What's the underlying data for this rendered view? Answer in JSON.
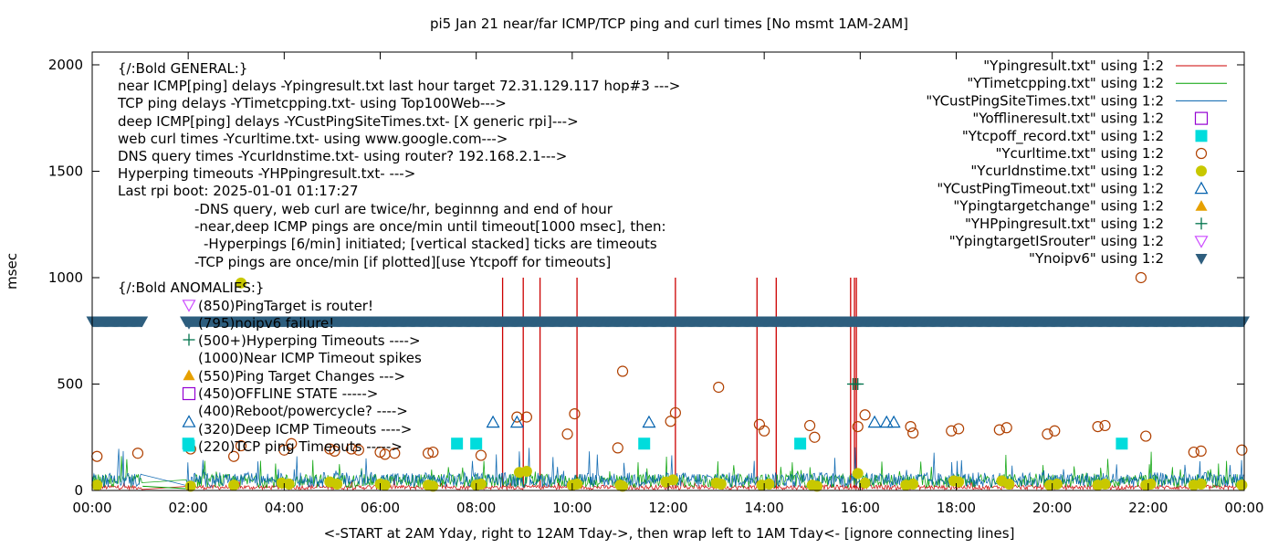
{
  "chart_data": {
    "type": "scatter",
    "title": "pi5 Jan 21  near/far ICMP/TCP ping and curl times [No msmt 1AM-2AM]",
    "xlabel": "<-START at 2AM Yday, right to 12AM Tday->, then wrap left to 1AM Tday<- [ignore connecting lines]",
    "ylabel": "msec",
    "xlim": [
      0,
      24
    ],
    "ylim": [
      0,
      2060
    ],
    "x_ticks": [
      0,
      2,
      4,
      6,
      8,
      10,
      12,
      14,
      16,
      18,
      20,
      22,
      24
    ],
    "x_tick_labels": [
      "00:00",
      "02:00",
      "04:00",
      "06:00",
      "08:00",
      "10:00",
      "12:00",
      "14:00",
      "16:00",
      "18:00",
      "20:00",
      "22:00",
      "00:00"
    ],
    "y_ticks": [
      0,
      500,
      1000,
      1500,
      2000
    ],
    "y_tick_labels": [
      "0",
      "500",
      "1000",
      "1500",
      "2000"
    ],
    "legend_position": "top-right",
    "annotation_lines": [
      "{/:Bold GENERAL:}",
      "near ICMP[ping] delays -Ypingresult.txt last hour target 72.31.129.117 hop#3 --->",
      "TCP ping delays -YTimetcpping.txt- using Top100Web--->",
      "deep ICMP[ping] delays -YCustPingSiteTimes.txt- [X generic rpi]--->",
      "web curl times -Ycurltime.txt- using www.google.com--->",
      "DNS query times -YcurIdnstime.txt- using router? 192.168.2.1--->",
      "Hyperping timeouts -YHPpingresult.txt- --->",
      "Last rpi boot: 2025-01-01 01:17:27",
      "-DNS query, web curl are twice/hr, beginnng and end of hour",
      "-near,deep ICMP pings are once/min until timeout[1000 msec], then:",
      "-Hyperpings [6/min] initiated; [vertical stacked] ticks are timeouts",
      "-TCP pings are once/min [if plotted][use Ytcpoff for timeouts]",
      "{/:Bold ANOMALIES:}",
      "(850)PingTarget is router!",
      "(795)noipv6 failure!",
      "(500+)Hyperping Timeouts ---->",
      "(1000)Near ICMP Timeout spikes",
      "(550)Ping Target Changes --->",
      "(450)OFFLINE STATE ----->",
      "(400)Reboot/powercycle? ---->",
      "(320)Deep ICMP Timeouts ---->",
      "(220)TCP ping Timeouts ----->"
    ],
    "series": [
      {
        "name": "\"Ypingresult.txt\" using 1:2",
        "style": "line",
        "color": "#cc0000",
        "baseline": 15,
        "spikes": [
          [
            8.55,
            1000
          ],
          [
            8.98,
            1000
          ],
          [
            9.33,
            1000
          ],
          [
            10.1,
            1000
          ],
          [
            12.15,
            1000
          ],
          [
            13.85,
            1000
          ],
          [
            14.25,
            1000
          ],
          [
            15.8,
            1000
          ],
          [
            15.88,
            1000
          ],
          [
            15.92,
            1000
          ]
        ]
      },
      {
        "name": "\"YTimetcpping.txt\" using 1:2",
        "style": "line",
        "color": "#00a000",
        "baseline": 45
      },
      {
        "name": "\"YCustPingSiteTimes.txt\" using 1:2",
        "style": "line",
        "color": "#0060ad",
        "baseline": 50
      },
      {
        "name": "\"Yofflineresult.txt\" using 1:2",
        "style": "open-square",
        "color": "#9400d3",
        "points": []
      },
      {
        "name": "\"Ytcpoff_record.txt\" using 1:2",
        "style": "filled-square",
        "color": "#00dcdc",
        "points": [
          [
            2.0,
            220
          ],
          [
            7.6,
            220
          ],
          [
            8.0,
            220
          ],
          [
            11.5,
            220
          ],
          [
            14.75,
            220
          ],
          [
            21.45,
            220
          ]
        ]
      },
      {
        "name": "\"Ycurltime.txt\" using 1:2",
        "style": "open-circle",
        "color": "#b04000",
        "points": [
          [
            0.1,
            160
          ],
          [
            0.95,
            175
          ],
          [
            2.05,
            195
          ],
          [
            2.95,
            160
          ],
          [
            3.1,
            210
          ],
          [
            4.0,
            190
          ],
          [
            4.15,
            220
          ],
          [
            4.95,
            195
          ],
          [
            5.05,
            185
          ],
          [
            5.4,
            195
          ],
          [
            5.55,
            190
          ],
          [
            6.0,
            180
          ],
          [
            6.1,
            170
          ],
          [
            6.3,
            175
          ],
          [
            7.0,
            175
          ],
          [
            7.1,
            180
          ],
          [
            8.1,
            165
          ],
          [
            8.85,
            345
          ],
          [
            9.05,
            345
          ],
          [
            9.9,
            265
          ],
          [
            10.05,
            360
          ],
          [
            10.95,
            200
          ],
          [
            11.05,
            560
          ],
          [
            12.05,
            325
          ],
          [
            12.15,
            365
          ],
          [
            13.05,
            485
          ],
          [
            13.9,
            310
          ],
          [
            14.0,
            280
          ],
          [
            14.95,
            305
          ],
          [
            15.05,
            250
          ],
          [
            15.95,
            300
          ],
          [
            16.1,
            355
          ],
          [
            17.05,
            300
          ],
          [
            17.1,
            270
          ],
          [
            17.9,
            280
          ],
          [
            18.05,
            290
          ],
          [
            18.9,
            285
          ],
          [
            19.05,
            295
          ],
          [
            19.9,
            265
          ],
          [
            20.05,
            280
          ],
          [
            20.95,
            300
          ],
          [
            21.1,
            305
          ],
          [
            21.85,
            1000
          ],
          [
            21.95,
            255
          ],
          [
            22.95,
            180
          ],
          [
            23.1,
            185
          ],
          [
            23.95,
            190
          ]
        ]
      },
      {
        "name": "\"YcurIdnstime.txt\" using 1:2",
        "style": "filled-circle",
        "color": "#c8c800",
        "points": [
          [
            0.1,
            25
          ],
          [
            2.05,
            20
          ],
          [
            2.95,
            25
          ],
          [
            3.1,
            975
          ],
          [
            3.95,
            35
          ],
          [
            4.1,
            30
          ],
          [
            4.95,
            40
          ],
          [
            5.1,
            30
          ],
          [
            6.0,
            30
          ],
          [
            6.1,
            25
          ],
          [
            7.0,
            25
          ],
          [
            7.1,
            20
          ],
          [
            8.0,
            25
          ],
          [
            8.1,
            30
          ],
          [
            8.9,
            85
          ],
          [
            9.05,
            90
          ],
          [
            10.0,
            25
          ],
          [
            10.1,
            30
          ],
          [
            11.0,
            25
          ],
          [
            11.05,
            20
          ],
          [
            11.95,
            40
          ],
          [
            12.1,
            50
          ],
          [
            13.0,
            35
          ],
          [
            13.1,
            30
          ],
          [
            13.95,
            25
          ],
          [
            14.1,
            30
          ],
          [
            15.0,
            25
          ],
          [
            15.1,
            20
          ],
          [
            15.95,
            80
          ],
          [
            16.1,
            35
          ],
          [
            16.95,
            25
          ],
          [
            17.1,
            30
          ],
          [
            17.95,
            45
          ],
          [
            18.05,
            40
          ],
          [
            18.95,
            45
          ],
          [
            19.1,
            30
          ],
          [
            19.95,
            25
          ],
          [
            20.1,
            30
          ],
          [
            20.95,
            25
          ],
          [
            21.1,
            30
          ],
          [
            21.95,
            25
          ],
          [
            22.05,
            30
          ],
          [
            22.95,
            25
          ],
          [
            23.1,
            30
          ],
          [
            23.95,
            25
          ]
        ]
      },
      {
        "name": "\"YCustPingTimeout.txt\" using 1:2",
        "style": "open-triangle-up",
        "color": "#0060ad",
        "points": [
          [
            8.35,
            320
          ],
          [
            8.85,
            320
          ],
          [
            11.6,
            320
          ],
          [
            16.3,
            320
          ],
          [
            16.55,
            320
          ],
          [
            16.7,
            320
          ]
        ]
      },
      {
        "name": "\"Ypingtargetchange\" using 1:2",
        "style": "filled-triangle-up",
        "color": "#e6a000",
        "points": []
      },
      {
        "name": "\"YHPpingresult.txt\" using 1:2",
        "style": "plus",
        "color": "#00734c",
        "points": [
          [
            15.85,
            500
          ],
          [
            15.9,
            500
          ],
          [
            15.95,
            500
          ]
        ]
      },
      {
        "name": "\"YpingtargetISrouter\" using 1:2",
        "style": "open-triangle-down",
        "color": "#cc4cff",
        "points": []
      },
      {
        "name": "\"Ynoipv6\" using 1:2",
        "style": "filled-triangle-down",
        "color": "#2e5e7e",
        "points_note": "continuous band of markers at 795",
        "band_y": 795,
        "band_ranges": [
          [
            0,
            1.05
          ],
          [
            1.95,
            24
          ]
        ]
      }
    ]
  }
}
